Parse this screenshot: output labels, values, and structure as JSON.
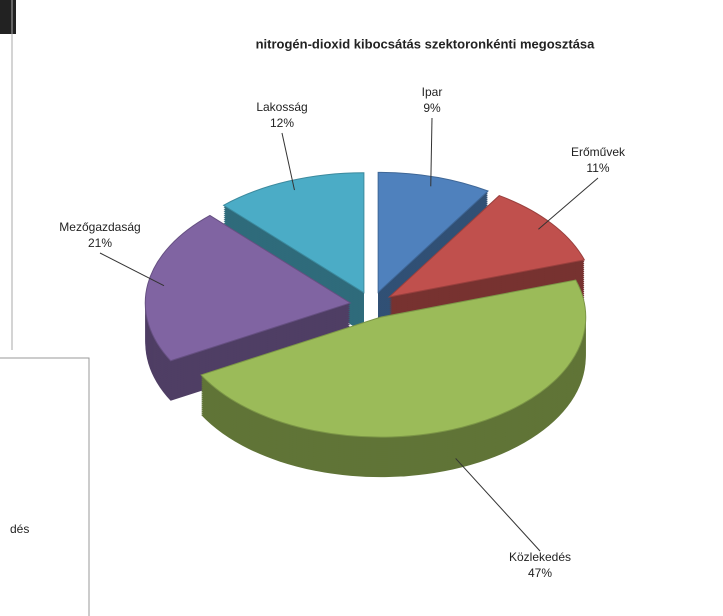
{
  "chart_data": {
    "type": "pie",
    "title": "nitrogén-dioxid kibocsátás szektoronkénti megosztása",
    "categories": [
      "Ipar",
      "Erőművek",
      "Közlekedés",
      "Mezőgazdaság",
      "Lakosság"
    ],
    "values": [
      9,
      11,
      47,
      21,
      12
    ],
    "value_labels": [
      "9%",
      "11%",
      "47%",
      "21%",
      "12%"
    ],
    "colors": [
      "#4f81bd",
      "#c0504d",
      "#9bbb59",
      "#8064a2",
      "#4bacc6"
    ]
  },
  "partial_text": "dés"
}
